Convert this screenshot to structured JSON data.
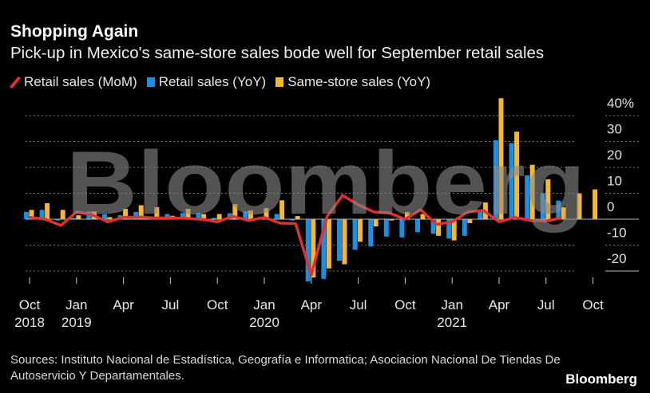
{
  "title": "Shopping Again",
  "subtitle": "Pick-up in Mexico's same-store sales bode well for September retail sales",
  "source": "Sources: Instituto Nacional de Estadística, Geografía e Informatica; Asociacion Nacional De Tiendas De Autoservicio Y Departamentales.",
  "logo": "Bloomberg",
  "watermark": "Bloomberg",
  "colors": {
    "retail_mom": "#e03030",
    "retail_yoy": "#1a8fe3",
    "same_store_yoy": "#f7b733",
    "background": "#000000"
  },
  "chart_data": {
    "type": "bar+line",
    "ylim": [
      -23,
      42
    ],
    "yticks": [
      -20,
      -10,
      0,
      10,
      20,
      30,
      40
    ],
    "ytick_labels": [
      "-20",
      "-10",
      "0",
      "10",
      "20",
      "30",
      "40%"
    ],
    "grid": true,
    "legend_placement": "top",
    "x": [
      "Oct 2018",
      "Nov 2018",
      "Dec 2018",
      "Jan 2019",
      "Feb 2019",
      "Mar 2019",
      "Apr 2019",
      "May 2019",
      "Jun 2019",
      "Jul 2019",
      "Aug 2019",
      "Sep 2019",
      "Oct 2019",
      "Nov 2019",
      "Dec 2019",
      "Jan 2020",
      "Feb 2020",
      "Mar 2020",
      "Apr 2020",
      "May 2020",
      "Jun 2020",
      "Jul 2020",
      "Aug 2020",
      "Sep 2020",
      "Oct 2020",
      "Nov 2020",
      "Dec 2020",
      "Jan 2021",
      "Feb 2021",
      "Mar 2021",
      "Apr 2021",
      "May 2021",
      "Jun 2021",
      "Jul 2021",
      "Aug 2021",
      "Sep 2021",
      "Oct 2021"
    ],
    "xtick_labels": [
      {
        "month": "Oct",
        "year": "2018",
        "index": 0
      },
      {
        "month": "Jan",
        "year": "2019",
        "index": 3
      },
      {
        "month": "Apr",
        "year": "",
        "index": 6
      },
      {
        "month": "Jul",
        "year": "",
        "index": 9
      },
      {
        "month": "Oct",
        "year": "",
        "index": 12
      },
      {
        "month": "Jan",
        "year": "2020",
        "index": 15
      },
      {
        "month": "Apr",
        "year": "",
        "index": 18
      },
      {
        "month": "Jul",
        "year": "",
        "index": 21
      },
      {
        "month": "Oct",
        "year": "",
        "index": 24
      },
      {
        "month": "Jan",
        "year": "2021",
        "index": 27
      },
      {
        "month": "Apr",
        "year": "",
        "index": 30
      },
      {
        "month": "Jul",
        "year": "",
        "index": 33
      },
      {
        "month": "Oct",
        "year": "",
        "index": 36
      }
    ],
    "series": [
      {
        "name": "Retail sales (MoM)",
        "kind": "line",
        "values": [
          0.7,
          0,
          -2.4,
          2.8,
          1.7,
          -1,
          0.7,
          0.8,
          0.5,
          0.5,
          0.3,
          0,
          -1,
          1.1,
          -0.5,
          0.7,
          -1.5,
          -1.7,
          -21.5,
          1,
          9.2,
          5.6,
          2.8,
          2.4,
          0,
          3.6,
          -2,
          -1,
          2.8,
          3.4,
          -1,
          0.7,
          -0.5,
          -0.7,
          0.5,
          null,
          null
        ]
      },
      {
        "name": "Retail sales (YoY)",
        "kind": "bar",
        "values": [
          2.8,
          3.6,
          -0.5,
          0.5,
          3,
          2,
          1.5,
          2.8,
          0.5,
          2,
          2.4,
          2.4,
          0.5,
          2.3,
          3,
          1,
          2,
          -0.5,
          -24,
          -23,
          -16,
          -11.8,
          -10.5,
          -6.7,
          -7,
          -5,
          -5.6,
          -7.5,
          -6.4,
          3,
          30.5,
          29.4,
          16.9,
          10,
          7.2,
          null,
          null
        ]
      },
      {
        "name": "Same-store sales (YoY)",
        "kind": "bar",
        "values": [
          3.6,
          6.2,
          3.6,
          1.5,
          3,
          0.8,
          4,
          5.4,
          4.6,
          1.3,
          4,
          2,
          2,
          5.8,
          3.4,
          4.3,
          7.3,
          1.2,
          -22.5,
          -19,
          -17.4,
          -8.7,
          -2.8,
          -0.5,
          2.8,
          2,
          -6.4,
          -8.2,
          -1.5,
          6.5,
          46.7,
          33.8,
          21,
          15.4,
          4.6,
          10,
          11.5
        ]
      }
    ]
  }
}
